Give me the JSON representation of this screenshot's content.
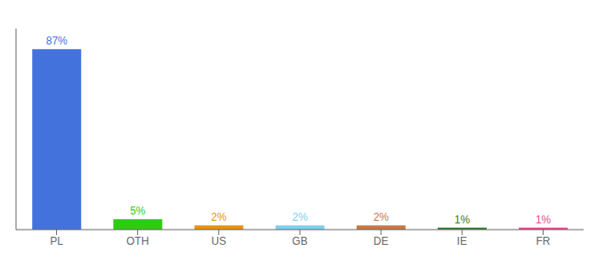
{
  "chart_data": {
    "type": "bar",
    "categories": [
      "PL",
      "OTH",
      "US",
      "GB",
      "DE",
      "IE",
      "FR"
    ],
    "values": [
      87,
      5,
      2,
      2,
      2,
      1,
      1
    ],
    "value_labels": [
      "87%",
      "5%",
      "2%",
      "2%",
      "2%",
      "1%",
      "1%"
    ],
    "colors": [
      "#4472dd",
      "#2ecc11",
      "#e8920a",
      "#7ecfed",
      "#c87941",
      "#2d7a2d",
      "#e8478a"
    ],
    "ylim": [
      0,
      97
    ],
    "data_labels": true,
    "tick_labels": "x",
    "grid": false
  }
}
